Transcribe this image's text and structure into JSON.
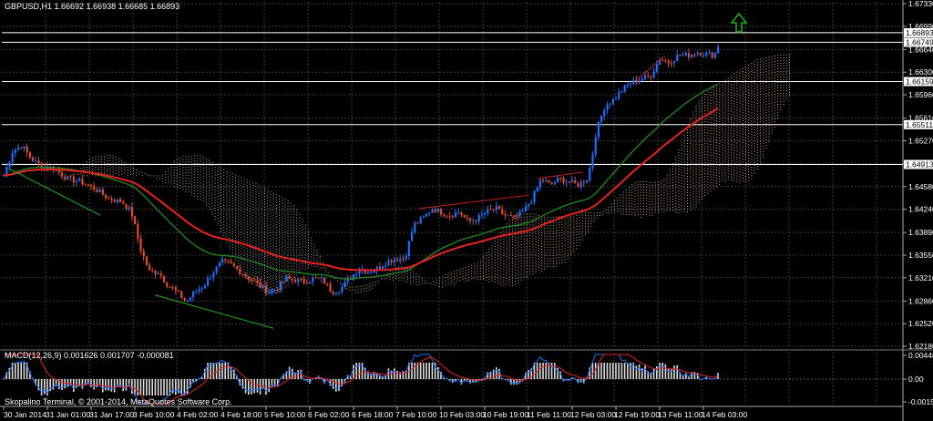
{
  "chart": {
    "symbol_header": "GBPUSD,H1  1.66692 1.66938 1.66685 1.66893",
    "macd_header": "MACD(12,26,9) 0.001626 0.001707 -0.000081",
    "copyright": "Skopalino Terminal, © 2001-2014, MetaQuotes Software Corp.",
    "colors": {
      "background": "#000000",
      "grid": "#3c3c3c",
      "up_candle": "#1e6fff",
      "down_candle": "#e04a2a",
      "ma_slow": "#e8221f",
      "ma_fast": "#1f8a1f",
      "kumo_upper": "#d7a98a",
      "kumo_lower": "#aaaaaa",
      "signal_arrow": "#1fae1f",
      "macd_line": "#1e6fff",
      "macd_signal": "#e8221f",
      "macd_hist": "#dddddd"
    }
  },
  "price_axis": {
    "ticks": [
      "1.67330",
      "1.66990",
      "1.66640",
      "1.66300",
      "1.65960",
      "1.65610",
      "1.65270",
      "1.64930",
      "1.64580",
      "1.64240",
      "1.63890",
      "1.63550",
      "1.63210",
      "1.62860",
      "1.62520",
      "1.62180"
    ],
    "tags": [
      "1.66893",
      "1.66749",
      "1.66159",
      "1.65511",
      "1.64913"
    ]
  },
  "time_axis": {
    "labels": [
      "30 Jan 2014",
      "31 Jan 01:00",
      "31 Jan 17:00",
      "3 Feb 10:00",
      "4 Feb 02:00",
      "4 Feb 18:00",
      "5 Feb 10:00",
      "6 Feb 02:00",
      "6 Feb 18:00",
      "7 Feb 10:00",
      "10 Feb 03:00",
      "10 Feb 19:00",
      "11 Feb 11:00",
      "12 Feb 03:00",
      "12 Feb 19:00",
      "13 Feb 11:00",
      "14 Feb 03:00"
    ]
  },
  "macd_axis": {
    "ticks": [
      "0.00448",
      "0.00",
      "-0.00155"
    ]
  },
  "chart_data": {
    "type": "candlestick",
    "symbol": "GBPUSD",
    "timeframe": "H1",
    "ohlc_last": {
      "open": 1.66692,
      "high": 1.66938,
      "low": 1.66685,
      "close": 1.66893
    },
    "ylim": [
      1.6218,
      1.6733
    ],
    "horizontal_levels": [
      1.66893,
      1.66749,
      1.66159,
      1.65511,
      1.64913
    ],
    "close_path": [
      [
        0,
        1.6475
      ],
      [
        10,
        1.6512
      ],
      [
        20,
        1.652
      ],
      [
        30,
        1.65
      ],
      [
        40,
        1.649
      ],
      [
        55,
        1.6485
      ],
      [
        70,
        1.647
      ],
      [
        85,
        1.6465
      ],
      [
        100,
        1.6455
      ],
      [
        115,
        1.644
      ],
      [
        130,
        1.6435
      ],
      [
        140,
        1.642
      ],
      [
        150,
        1.6365
      ],
      [
        160,
        1.633
      ],
      [
        170,
        1.633
      ],
      [
        180,
        1.631
      ],
      [
        190,
        1.63
      ],
      [
        200,
        1.6285
      ],
      [
        210,
        1.63
      ],
      [
        220,
        1.631
      ],
      [
        230,
        1.633
      ],
      [
        240,
        1.6345
      ],
      [
        250,
        1.634
      ],
      [
        260,
        1.633
      ],
      [
        270,
        1.632
      ],
      [
        280,
        1.631
      ],
      [
        290,
        1.63
      ],
      [
        300,
        1.6305
      ],
      [
        310,
        1.632
      ],
      [
        320,
        1.6318
      ],
      [
        330,
        1.6315
      ],
      [
        340,
        1.632
      ],
      [
        350,
        1.6318
      ],
      [
        360,
        1.63
      ],
      [
        370,
        1.6305
      ],
      [
        380,
        1.632
      ],
      [
        390,
        1.6335
      ],
      [
        400,
        1.633
      ],
      [
        410,
        1.6335
      ],
      [
        420,
        1.6345
      ],
      [
        430,
        1.635
      ],
      [
        440,
        1.635
      ],
      [
        445,
        1.6375
      ],
      [
        450,
        1.64
      ],
      [
        460,
        1.641
      ],
      [
        470,
        1.6425
      ],
      [
        480,
        1.642
      ],
      [
        490,
        1.6415
      ],
      [
        500,
        1.642
      ],
      [
        510,
        1.6405
      ],
      [
        520,
        1.641
      ],
      [
        530,
        1.642
      ],
      [
        540,
        1.6425
      ],
      [
        550,
        1.6415
      ],
      [
        560,
        1.641
      ],
      [
        570,
        1.642
      ],
      [
        580,
        1.644
      ],
      [
        590,
        1.647
      ],
      [
        600,
        1.646
      ],
      [
        610,
        1.647
      ],
      [
        620,
        1.6465
      ],
      [
        630,
        1.646
      ],
      [
        640,
        1.647
      ],
      [
        645,
        1.6495
      ],
      [
        650,
        1.654
      ],
      [
        655,
        1.656
      ],
      [
        660,
        1.658
      ],
      [
        670,
        1.659
      ],
      [
        680,
        1.6605
      ],
      [
        690,
        1.6615
      ],
      [
        700,
        1.662
      ],
      [
        710,
        1.6625
      ],
      [
        720,
        1.665
      ],
      [
        730,
        1.6645
      ],
      [
        740,
        1.6655
      ],
      [
        750,
        1.6655
      ],
      [
        760,
        1.666
      ],
      [
        770,
        1.6658
      ],
      [
        780,
        1.6655
      ],
      [
        785,
        1.6674
      ],
      [
        790,
        1.66893
      ]
    ],
    "macd": {
      "main": 0.001626,
      "signal": 0.001707,
      "histogram": -8.1e-05,
      "params": [
        12,
        26,
        9
      ]
    }
  }
}
